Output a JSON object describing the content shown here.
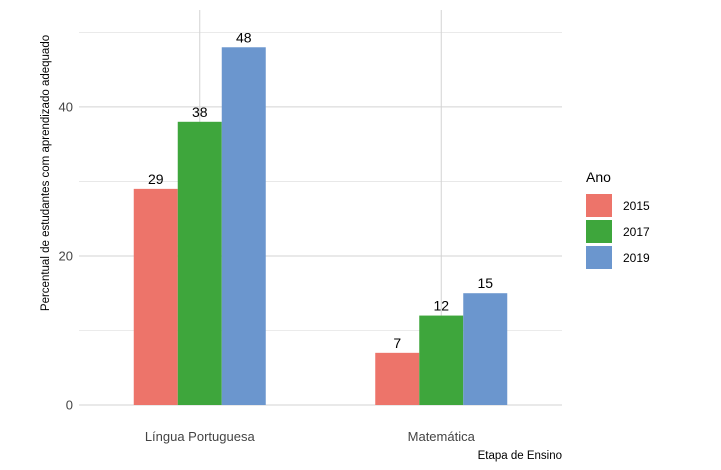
{
  "chart_data": {
    "type": "bar",
    "categories": [
      "Língua Portuguesa",
      "Matemática"
    ],
    "series": [
      {
        "name": "2015",
        "values": [
          29,
          7
        ],
        "color": "#ED746A"
      },
      {
        "name": "2017",
        "values": [
          38,
          12
        ],
        "color": "#3EA63C"
      },
      {
        "name": "2019",
        "values": [
          48,
          15
        ],
        "color": "#6B96CE"
      }
    ],
    "title": "",
    "xlabel": "Etapa de Ensino",
    "ylabel": "Percentual de estudantes com aprendizado adequado",
    "ylim": [
      0,
      53
    ],
    "yticks": [
      0,
      20,
      40
    ],
    "grid": true,
    "legend": {
      "title": "Ano",
      "position": "right"
    }
  }
}
